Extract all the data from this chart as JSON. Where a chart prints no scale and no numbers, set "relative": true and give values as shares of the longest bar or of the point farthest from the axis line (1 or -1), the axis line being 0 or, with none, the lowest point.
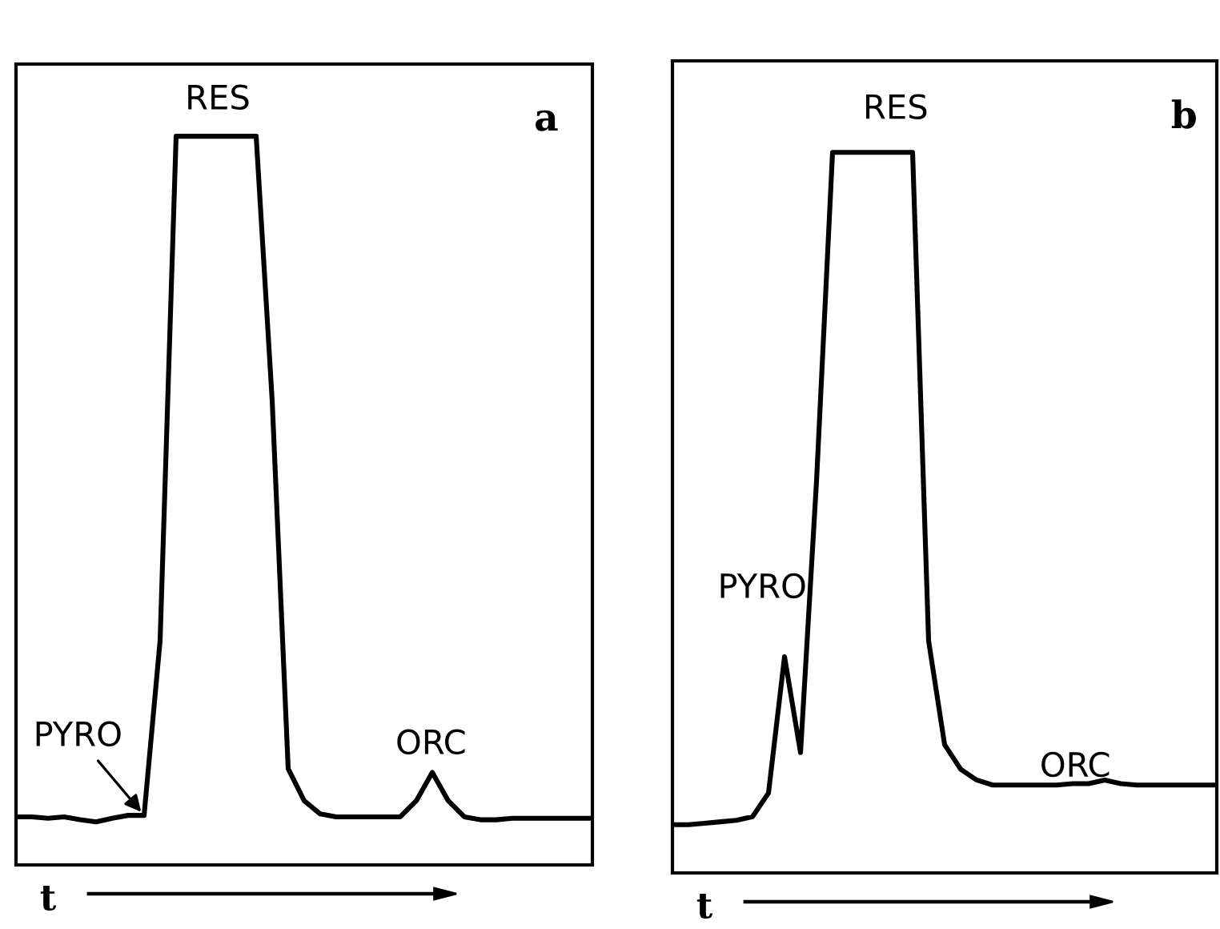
{
  "chart_data": [
    {
      "type": "line",
      "relative": true,
      "title": "a",
      "xlabel": "t",
      "marker": "none",
      "line_style": "solid",
      "categories": [
        null,
        null,
        null,
        null,
        null,
        null,
        null,
        null,
        null,
        null,
        null,
        null,
        null,
        null,
        null,
        null,
        null,
        null,
        null,
        null,
        null,
        null,
        null,
        null,
        null,
        null,
        null,
        null,
        null,
        null,
        null,
        null,
        null,
        null,
        null,
        null,
        null
      ],
      "series": [
        {
          "color": "#000000",
          "values": [
            0.066,
            0.066,
            0.064,
            0.066,
            0.062,
            0.059,
            0.064,
            0.068,
            0.068,
            0.308,
            1,
            1,
            1,
            1,
            1,
            1,
            0.637,
            0.132,
            0.088,
            0.07,
            0.066,
            0.066,
            0.066,
            0.066,
            0.066,
            0.088,
            0.127,
            0.088,
            0.066,
            0.062,
            0.062,
            0.064,
            0.064,
            0.064,
            0.064,
            0.064,
            0.064
          ]
        }
      ],
      "annotations": [
        "RES",
        "PYRO",
        "ORC"
      ]
    },
    {
      "type": "line",
      "relative": true,
      "title": "b",
      "xlabel": "t",
      "marker": "none",
      "line_style": "solid",
      "categories": [
        null,
        null,
        null,
        null,
        null,
        null,
        null,
        null,
        null,
        null,
        null,
        null,
        null,
        null,
        null,
        null,
        null,
        null,
        null,
        null,
        null,
        null,
        null,
        null,
        null,
        null,
        null,
        null,
        null,
        null,
        null,
        null,
        null,
        null,
        null
      ],
      "series": [
        {
          "color": "#000000",
          "values": [
            0.067,
            0.067,
            0.069,
            0.071,
            0.073,
            0.078,
            0.111,
            0.3,
            0.167,
            0.544,
            1,
            1,
            1,
            1,
            1,
            1,
            0.322,
            0.178,
            0.144,
            0.129,
            0.122,
            0.122,
            0.122,
            0.122,
            0.122,
            0.124,
            0.124,
            0.129,
            0.124,
            0.122,
            0.122,
            0.122,
            0.122,
            0.122,
            0.122
          ]
        }
      ],
      "annotations": [
        "RES",
        "PYRO",
        "ORC"
      ]
    }
  ]
}
